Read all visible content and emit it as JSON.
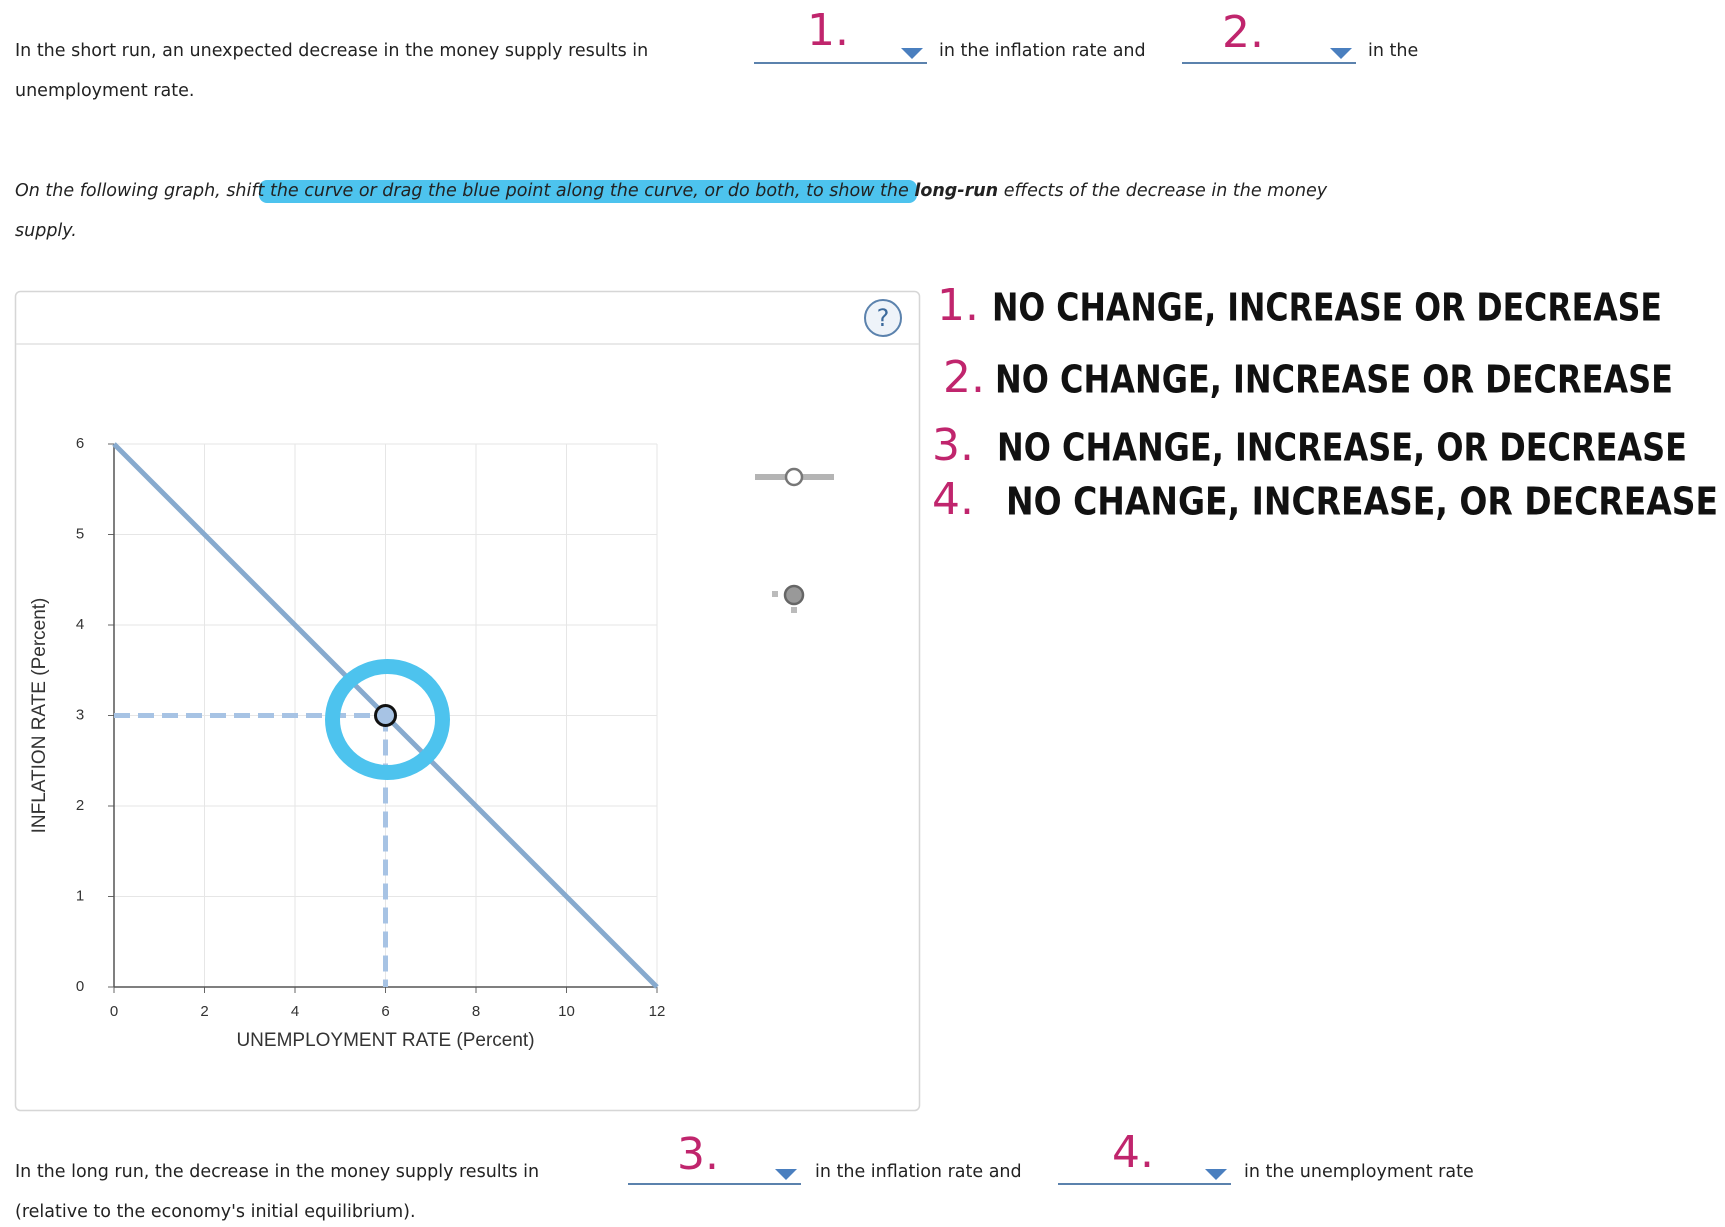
{
  "question1": {
    "before": "In the short run, an unexpected decrease in the money supply results in",
    "middle": "in the inflation rate and",
    "after": "in the",
    "wrap": "unemployment rate."
  },
  "dropdowns": [
    {
      "label": "1."
    },
    {
      "label": "2."
    },
    {
      "label": "3."
    },
    {
      "label": "4."
    }
  ],
  "instruction": {
    "lead": "On the following graph, ",
    "highlight": "shift the curve or drag the blue point along the curve, or do both",
    "mid": ", to show the ",
    "bold": "long-run",
    "tail": " effects of the decrease in the money",
    "wrap": "supply."
  },
  "help": "?",
  "chart_data": {
    "type": "line",
    "x_label": "UNEMPLOYMENT RATE (Percent)",
    "y_label": "INFLATION RATE (Percent)",
    "xlim": [
      0,
      12
    ],
    "ylim": [
      0,
      6
    ],
    "xticks": [
      0,
      2,
      4,
      6,
      8,
      10,
      12
    ],
    "yticks": [
      0,
      1,
      2,
      3,
      4,
      5,
      6
    ],
    "grid": true,
    "series": [
      {
        "color": "#87aace",
        "x": [
          0,
          12
        ],
        "values": [
          6,
          0
        ]
      }
    ],
    "point": {
      "color": "#a7c3e4",
      "x": 6,
      "y": 3
    }
  },
  "annotations": [
    {
      "number": "1.",
      "text": "NO CHANGE, INCREASE OR DECREASE"
    },
    {
      "number": "2.",
      "text": "NO CHANGE, INCREASE OR DECREASE"
    },
    {
      "number": "3.",
      "text": "NO CHANGE, INCREASE, OR DECREASE"
    },
    {
      "number": "4.",
      "text": "NO CHANGE, INCREASE, OR DECREASE"
    }
  ],
  "question2": {
    "before": "In the long run, the decrease in the money supply results in",
    "middle": "in the inflation rate and",
    "after": "in the unemployment rate",
    "wrap": "(relative to the economy's initial equilibrium)."
  }
}
